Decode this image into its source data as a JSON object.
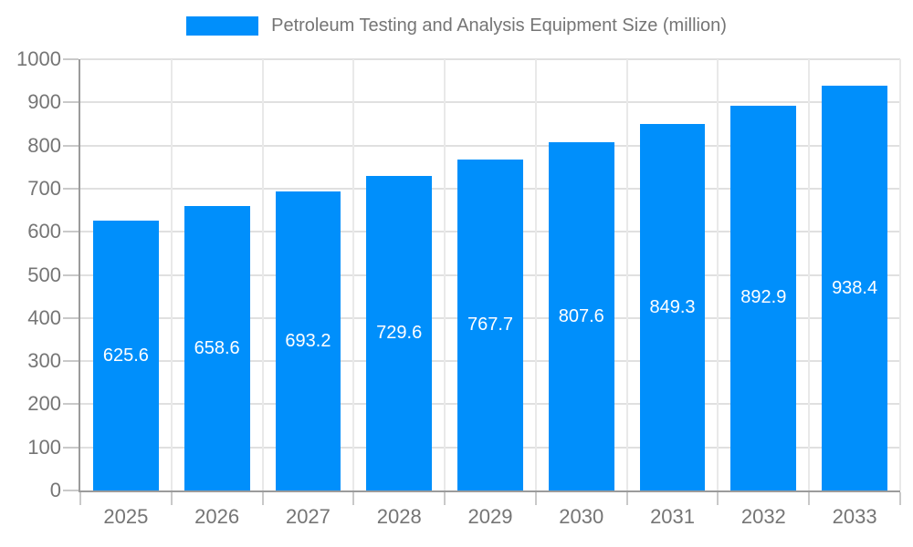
{
  "chart_data": {
    "type": "bar",
    "title": "Petroleum Testing and Analysis Equipment Size (million)",
    "legend": {
      "position": "top",
      "entries": [
        "Petroleum Testing and Analysis Equipment Size (million)"
      ]
    },
    "categories": [
      "2025",
      "2026",
      "2027",
      "2028",
      "2029",
      "2030",
      "2031",
      "2032",
      "2033"
    ],
    "series": [
      {
        "name": "Petroleum Testing and Analysis Equipment Size (million)",
        "values": [
          625.6,
          658.6,
          693.2,
          729.6,
          767.7,
          807.6,
          849.3,
          892.9,
          938.4
        ]
      }
    ],
    "value_labels": [
      "625.6",
      "658.6",
      "693.2",
      "729.6",
      "767.7",
      "807.6",
      "849.3",
      "892.9",
      "938.4"
    ],
    "xlabel": "",
    "ylabel": "",
    "ylim": [
      0,
      1000
    ],
    "y_ticks": [
      0,
      100,
      200,
      300,
      400,
      500,
      600,
      700,
      800,
      900,
      1000
    ],
    "grid": "on",
    "colors": {
      "bar": "#008FFB",
      "value_label": "#FFFFFF",
      "axis_text": "#757575",
      "grid_horizontal": "#E0E0E0",
      "grid_vertical": "#E9E9E9",
      "axis_line": "#9B9B9B",
      "tick": "#C9C9C9",
      "background": "#FFFFFF"
    }
  }
}
